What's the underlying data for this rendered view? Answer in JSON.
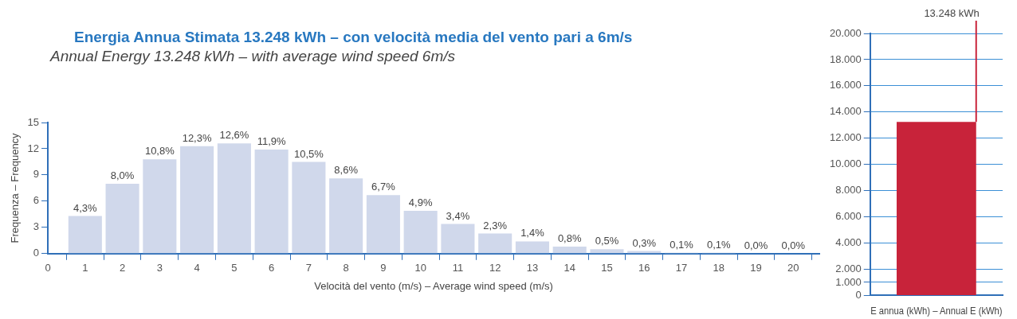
{
  "chart_data": [
    {
      "type": "bar",
      "title": "Energia Annua Stimata 13.248 kWh – con velocità media del vento pari a 6m/s",
      "subtitle": "Annual Energy 13.248 kWh – with average wind speed 6m/s",
      "xlabel": "Velocità del vento (m/s) – Average wind speed (m/s)",
      "ylabel": "Frequenza – Frequency",
      "x": [
        1,
        2,
        3,
        4,
        5,
        6,
        7,
        8,
        9,
        10,
        11,
        12,
        13,
        14,
        15,
        16,
        17,
        18,
        19,
        20
      ],
      "values": [
        4.3,
        8.0,
        10.8,
        12.3,
        12.6,
        11.9,
        10.5,
        8.6,
        6.7,
        4.9,
        3.4,
        2.3,
        1.4,
        0.8,
        0.5,
        0.3,
        0.1,
        0.1,
        0.0,
        0.0
      ],
      "value_labels": [
        "4,3%",
        "8,0%",
        "10,8%",
        "12,3%",
        "12,6%",
        "11,9%",
        "10,5%",
        "8,6%",
        "6,7%",
        "4,9%",
        "3,4%",
        "2,3%",
        "1,4%",
        "0,8%",
        "0,5%",
        "0,3%",
        "0,1%",
        "0,1%",
        "0,0%",
        "0,0%"
      ],
      "color": "#d0d8eb",
      "xlim": [
        0,
        20.7
      ],
      "xticks": [
        0,
        1,
        2,
        3,
        4,
        5,
        6,
        7,
        8,
        9,
        10,
        11,
        12,
        13,
        14,
        15,
        16,
        17,
        18,
        19,
        20
      ],
      "ylim": [
        0,
        15
      ],
      "yticks": [
        0,
        3,
        6,
        9,
        12,
        15
      ]
    },
    {
      "type": "bar",
      "xlabel": "E annua (kWh) – Annual E (kWh)",
      "categories": [
        null
      ],
      "values": [
        13248
      ],
      "value_labels": [
        "13.248 kWh"
      ],
      "color": "#c8233a",
      "ylim": [
        0,
        20000
      ],
      "yticks": [
        0,
        {
          "value": 1000,
          "label": "1.000"
        },
        {
          "value": 2000,
          "label": "2.000"
        },
        {
          "value": 4000,
          "label": "4.000"
        },
        {
          "value": 6000,
          "label": "6.000"
        },
        {
          "value": 8000,
          "label": "8.000"
        },
        {
          "value": 10000,
          "label": "10.000"
        },
        {
          "value": 12000,
          "label": "12.000"
        },
        {
          "value": 14000,
          "label": "14.000"
        },
        {
          "value": 16000,
          "label": "16.000"
        },
        {
          "value": 18000,
          "label": "18.000"
        },
        {
          "value": 20000,
          "label": "20.000"
        }
      ],
      "grid": "y"
    }
  ]
}
